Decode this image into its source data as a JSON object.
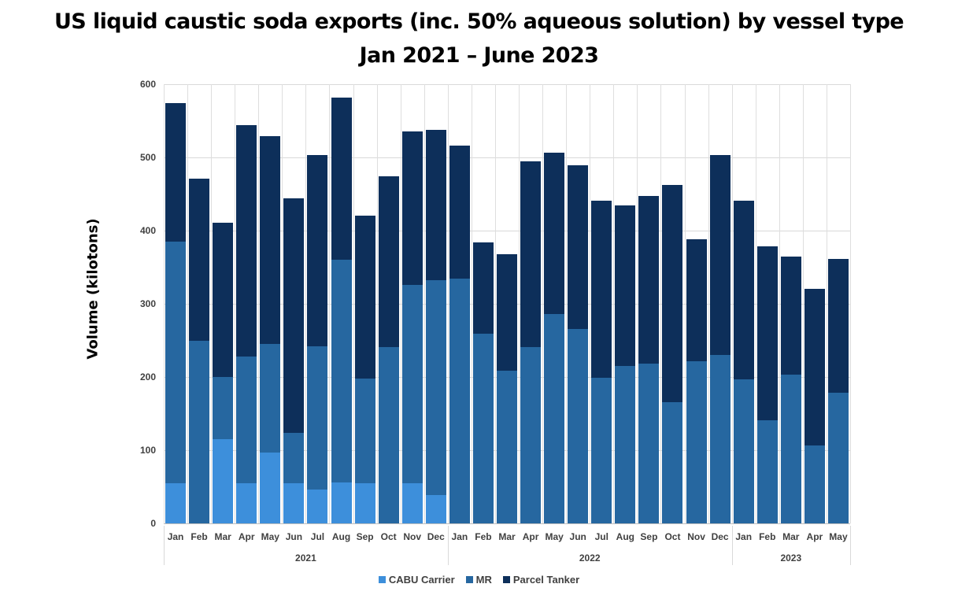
{
  "title": {
    "line1": "US liquid caustic soda exports (inc. 50% aqueous solution) by vessel type",
    "line2": "Jan 2021 – June 2023"
  },
  "colors": {
    "cabu": "#3d8fdb",
    "mr": "#2667a0",
    "parcel": "#0d2f5a"
  },
  "chart_data": {
    "type": "bar",
    "stacked": true,
    "title": "US liquid caustic soda exports (inc. 50% aqueous solution) by vessel type Jan 2021 – June 2023",
    "xlabel": "",
    "ylabel": "Volume (kilotons)",
    "ylim": [
      0,
      600
    ],
    "yticks": [
      0,
      100,
      200,
      300,
      400,
      500,
      600
    ],
    "grid": true,
    "legend_position": "bottom",
    "categories": [
      "Jan",
      "Feb",
      "Mar",
      "Apr",
      "May",
      "Jun",
      "Jul",
      "Aug",
      "Sep",
      "Oct",
      "Nov",
      "Dec",
      "Jan",
      "Feb",
      "Mar",
      "Apr",
      "May",
      "Jun",
      "Jul",
      "Aug",
      "Sep",
      "Oct",
      "Nov",
      "Dec",
      "Jan",
      "Feb",
      "Mar",
      "Apr",
      "May"
    ],
    "groups": [
      {
        "label": "2021",
        "start": 0,
        "count": 12
      },
      {
        "label": "2022",
        "start": 12,
        "count": 12
      },
      {
        "label": "2023",
        "start": 24,
        "count": 5
      }
    ],
    "series": [
      {
        "name": "CABU Carrier",
        "color": "#3d8fdb",
        "values": [
          55,
          0,
          115,
          55,
          97,
          55,
          46,
          56,
          55,
          0,
          55,
          39,
          0,
          0,
          0,
          0,
          0,
          0,
          0,
          0,
          0,
          0,
          0,
          0,
          0,
          0,
          0,
          0,
          0
        ]
      },
      {
        "name": "MR",
        "color": "#2667a0",
        "values": [
          330,
          250,
          85,
          173,
          148,
          69,
          196,
          304,
          143,
          241,
          271,
          293,
          334,
          259,
          209,
          241,
          286,
          266,
          199,
          215,
          218,
          166,
          222,
          230,
          197,
          141,
          203,
          107,
          179
        ]
      },
      {
        "name": "Parcel Tanker",
        "color": "#0d2f5a",
        "values": [
          189,
          221,
          211,
          316,
          284,
          320,
          261,
          222,
          222,
          233,
          209,
          206,
          182,
          125,
          159,
          254,
          220,
          223,
          242,
          219,
          229,
          296,
          166,
          273,
          244,
          237,
          162,
          213,
          182
        ]
      }
    ]
  },
  "legend": [
    {
      "label": "CABU Carrier",
      "color": "#3d8fdb"
    },
    {
      "label": "MR",
      "color": "#2667a0"
    },
    {
      "label": "Parcel Tanker",
      "color": "#0d2f5a"
    }
  ]
}
